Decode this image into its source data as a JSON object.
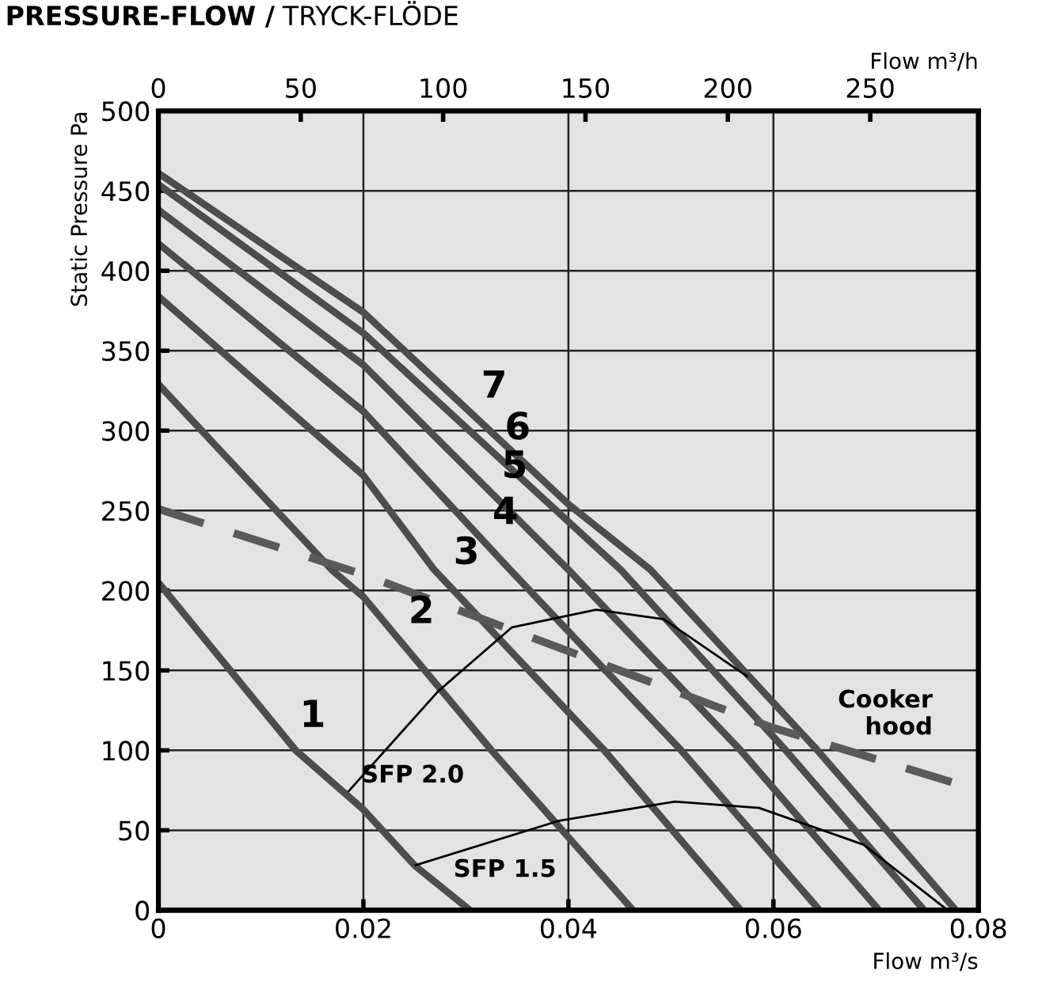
{
  "chart_data": {
    "type": "line",
    "title": "PRESSURE-FLOW /",
    "subtitle": "TRYCK-FLÖDE",
    "xlabel": "Flow m³/s",
    "x2label": "Flow m³/h",
    "ylabel": "Static Pressure Pa",
    "xlim": [
      0,
      0.08
    ],
    "xticks": [
      0,
      0.02,
      0.04,
      0.06,
      0.08
    ],
    "x2lim": [
      0,
      288
    ],
    "x2ticks": [
      0,
      50,
      100,
      150,
      200,
      250
    ],
    "ylim": [
      0,
      500
    ],
    "yticks": [
      0,
      50,
      100,
      150,
      200,
      250,
      300,
      350,
      400,
      450,
      500
    ],
    "grid": true,
    "line_style": "solid",
    "series": [
      {
        "color": "#4d4d4d",
        "x": [
          0,
          0.0134,
          0.02,
          0.025,
          0.0304
        ],
        "values": [
          205,
          100,
          63,
          28,
          0
        ]
      },
      {
        "color": "#4d4d4d",
        "x": [
          0,
          0.0169,
          0.02,
          0.0325,
          0.0463
        ],
        "values": [
          329,
          213,
          196,
          100,
          0
        ]
      },
      {
        "color": "#4d4d4d",
        "x": [
          0,
          0.02,
          0.0269,
          0.0435,
          0.0568
        ],
        "values": [
          384,
          272,
          213,
          100,
          0
        ]
      },
      {
        "color": "#4d4d4d",
        "x": [
          0,
          0.02,
          0.0343,
          0.051,
          0.0645
        ],
        "values": [
          417,
          312,
          213,
          100,
          0
        ]
      },
      {
        "color": "#4d4d4d",
        "x": [
          0,
          0.02,
          0.04,
          0.0568,
          0.0703
        ],
        "values": [
          438,
          341,
          213,
          100,
          0
        ]
      },
      {
        "color": "#4d4d4d",
        "x": [
          0,
          0.02,
          0.0451,
          0.0612,
          0.0747
        ],
        "values": [
          454,
          361,
          213,
          100,
          0
        ]
      },
      {
        "color": "#4d4d4d",
        "x": [
          0,
          0.02,
          0.04,
          0.048,
          0.0643,
          0.0778
        ],
        "values": [
          461,
          374,
          254,
          213,
          100,
          0
        ]
      },
      {
        "color": "#5a5a5a",
        "line_style": "dashed",
        "x": [
          0,
          0.02,
          0.04,
          0.06,
          0.0795
        ],
        "values": [
          251,
          210,
          162,
          114,
          76
        ]
      },
      {
        "color": "#000000",
        "x": [
          0.0185,
          0.0273,
          0.0345,
          0.0427,
          0.0493,
          0.0575
        ],
        "values": [
          74,
          137,
          177,
          188,
          182,
          146
        ]
      },
      {
        "color": "#000000",
        "x": [
          0.025,
          0.0391,
          0.0504,
          0.0586,
          0.0688,
          0.077
        ],
        "values": [
          28,
          56,
          68,
          64,
          41,
          0
        ]
      }
    ],
    "annotations": [
      {
        "text": "1",
        "x": 0.0125,
        "y": 107
      },
      {
        "text": "2",
        "x": 0.0231,
        "y": 172
      },
      {
        "text": "3",
        "x": 0.0275,
        "y": 209
      },
      {
        "text": "4",
        "x": 0.0313,
        "y": 234
      },
      {
        "text": "5",
        "x": 0.0322,
        "y": 263
      },
      {
        "text": "6",
        "x": 0.0325,
        "y": 287
      },
      {
        "text": "7",
        "x": 0.0302,
        "y": 313
      },
      {
        "text": "Cooker\nhood",
        "x": 0.065,
        "y": 104
      },
      {
        "text": "SFP 2.0",
        "x": 0.0185,
        "y": 74
      },
      {
        "text": "SFP 1.5",
        "x": 0.0275,
        "y": 15
      }
    ]
  }
}
